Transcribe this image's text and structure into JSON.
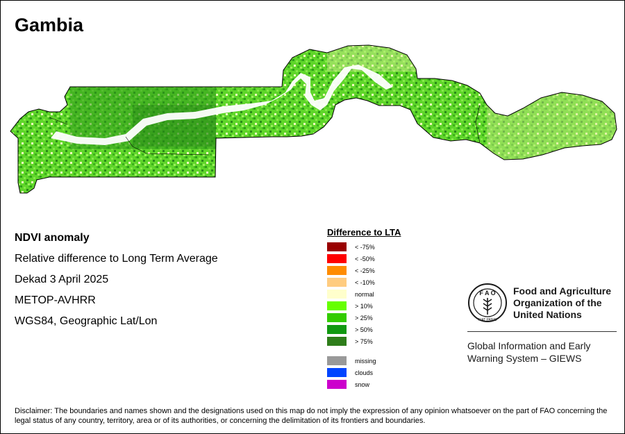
{
  "map": {
    "title": "Gambia"
  },
  "info": {
    "lines": [
      "NDVI anomaly",
      "Relative difference to Long Term Average",
      "Dekad 3 April 2025",
      "METOP-AVHRR",
      "WGS84, Geographic Lat/Lon"
    ]
  },
  "legend": {
    "title": "Difference to LTA",
    "classes": [
      {
        "label": "< -75%",
        "color": "#990000"
      },
      {
        "label": "< -50%",
        "color": "#ff0000"
      },
      {
        "label": "< -25%",
        "color": "#ff8c00"
      },
      {
        "label": "< -10%",
        "color": "#ffcc80"
      },
      {
        "label": "normal",
        "color": "#ffffcc"
      },
      {
        "label": "> 10%",
        "color": "#66ff00"
      },
      {
        "label": "> 25%",
        "color": "#33cc00"
      },
      {
        "label": "> 50%",
        "color": "#119911"
      },
      {
        "label": "> 75%",
        "color": "#2e7d1a"
      }
    ],
    "extra": [
      {
        "label": "missing",
        "color": "#999999"
      },
      {
        "label": "clouds",
        "color": "#0044ff"
      },
      {
        "label": "snow",
        "color": "#cc00cc"
      }
    ]
  },
  "fao": {
    "name_lines": [
      "Food and Agriculture",
      "Organization of the",
      "United Nations"
    ],
    "giews_lines": [
      "Global Information and Early",
      "Warning System – GIEWS"
    ],
    "logo_icon": "fao-wheat-logo-icon",
    "logo_text": "FIAT PANIS"
  },
  "disclaimer": "Disclaimer: The boundaries and names shown and the designations used on this map do not imply the expression of any opinion whatsoever on the part of FAO concerning the legal status of any country, territory, area or of its authorities, or concerning the delimitation of its frontiers and boundaries."
}
